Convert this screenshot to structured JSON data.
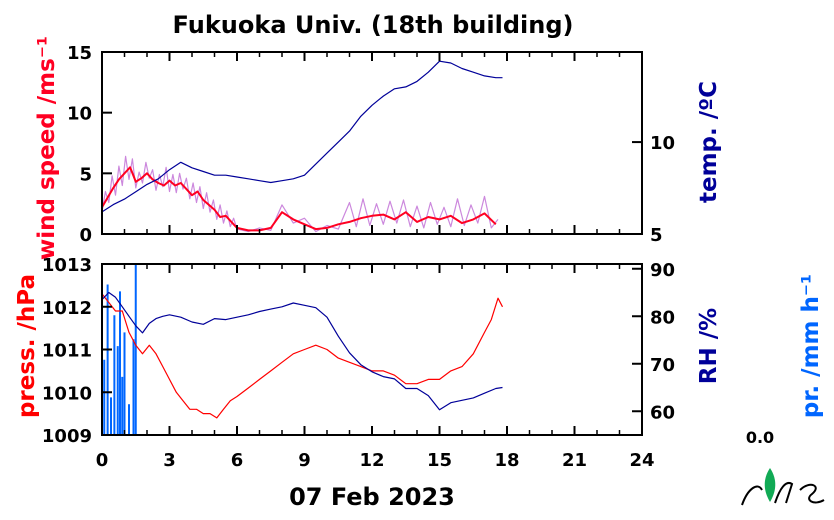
{
  "title": "Fukuoka Univ. (18th building)",
  "date_label": "07 Feb 2023",
  "colors": {
    "wind_mean": "#ff0022",
    "wind_raw": "#cc88dd",
    "temp": "#000099",
    "press": "#ff0000",
    "rh": "#000099",
    "precip": "#0066ff",
    "logo_leaf": "#11aa55"
  },
  "chart_data": [
    {
      "type": "line",
      "panel": "top",
      "xlim": [
        0,
        24
      ],
      "x_ticks": [
        "0",
        "3",
        "6",
        "9",
        "12",
        "15",
        "18",
        "21",
        "24"
      ],
      "left_axis": {
        "label": "wind speed /ms⁻¹",
        "ylim": [
          0,
          15
        ],
        "ticks": [
          "0",
          "5",
          "10",
          "15"
        ]
      },
      "right_axis": {
        "label": "temp. /ºC",
        "ylim": [
          5,
          14.9
        ],
        "ticks": [
          "5",
          "10"
        ]
      },
      "series": [
        {
          "axis": "left",
          "x": [
            0,
            0.25,
            0.5,
            0.75,
            1.0,
            1.25,
            1.5,
            1.75,
            2.0,
            2.25,
            2.5,
            2.75,
            3.0,
            3.25,
            3.5,
            3.75,
            4.0,
            4.25,
            4.5,
            4.75,
            5.0,
            5.25,
            5.5,
            5.75,
            6.0,
            6.5,
            7.0,
            7.5,
            8.0,
            8.5,
            9.0,
            9.5,
            10.0,
            10.5,
            11.0,
            11.5,
            12.0,
            12.5,
            13.0,
            13.5,
            14.0,
            14.5,
            15.0,
            15.5,
            16.0,
            16.5,
            17.0,
            17.5
          ],
          "y": [
            2.2,
            3.0,
            3.8,
            4.5,
            5.0,
            5.5,
            4.3,
            4.6,
            5.0,
            4.5,
            4.2,
            4.0,
            4.4,
            4.0,
            4.2,
            3.7,
            3.2,
            3.5,
            2.8,
            2.4,
            2.0,
            1.4,
            1.5,
            1.0,
            0.5,
            0.3,
            0.3,
            0.5,
            1.8,
            1.2,
            0.8,
            0.4,
            0.5,
            0.8,
            1.0,
            1.3,
            1.5,
            1.6,
            1.2,
            1.8,
            1.0,
            1.4,
            1.2,
            1.5,
            0.9,
            1.2,
            1.7,
            0.8
          ]
        },
        {
          "axis": "left",
          "x": [
            0,
            0.15,
            0.3,
            0.45,
            0.6,
            0.75,
            0.9,
            1.05,
            1.2,
            1.35,
            1.5,
            1.65,
            1.8,
            1.95,
            2.1,
            2.25,
            2.4,
            2.55,
            2.7,
            2.85,
            3.0,
            3.15,
            3.3,
            3.45,
            3.6,
            3.75,
            3.9,
            4.05,
            4.2,
            4.35,
            4.5,
            4.65,
            4.8,
            4.95,
            5.1,
            5.25,
            5.4,
            5.55,
            5.7,
            5.85,
            6.0,
            6.5,
            7.0,
            7.5,
            8.0,
            8.5,
            9.0,
            9.5,
            10.0,
            10.5,
            11.0,
            11.3,
            11.6,
            11.9,
            12.2,
            12.5,
            12.8,
            13.1,
            13.4,
            13.7,
            14.0,
            14.3,
            14.6,
            14.9,
            15.2,
            15.5,
            15.8,
            16.1,
            16.4,
            16.7,
            17.0,
            17.3,
            17.6
          ],
          "y": [
            1.8,
            3.5,
            2.6,
            4.8,
            3.2,
            5.6,
            4.0,
            6.4,
            4.5,
            6.2,
            3.8,
            5.1,
            4.2,
            5.9,
            4.6,
            5.3,
            3.6,
            4.9,
            3.9,
            5.5,
            3.5,
            4.9,
            3.4,
            5.0,
            3.7,
            4.6,
            2.9,
            4.2,
            2.6,
            3.9,
            2.1,
            3.4,
            1.8,
            2.8,
            1.2,
            2.4,
            0.9,
            1.9,
            0.6,
            1.3,
            0.4,
            0.2,
            0.5,
            0.3,
            2.4,
            0.9,
            1.3,
            0.2,
            0.7,
            0.4,
            2.6,
            0.6,
            2.9,
            0.7,
            2.5,
            0.8,
            2.7,
            0.9,
            2.8,
            0.6,
            2.3,
            0.5,
            2.6,
            0.8,
            2.2,
            0.6,
            2.9,
            0.7,
            2.4,
            0.9,
            3.1,
            0.5,
            1.2
          ]
        },
        {
          "axis": "right",
          "x": [
            0,
            0.5,
            1.0,
            1.5,
            2.0,
            2.5,
            3.0,
            3.5,
            4.0,
            4.5,
            5.0,
            5.5,
            6.0,
            6.5,
            7.0,
            7.5,
            8.0,
            8.5,
            9.0,
            9.5,
            10.0,
            10.5,
            11.0,
            11.5,
            12.0,
            12.5,
            13.0,
            13.5,
            14.0,
            14.5,
            15.0,
            15.5,
            16.0,
            16.5,
            17.0,
            17.5,
            17.8
          ],
          "y": [
            6.2,
            6.6,
            6.9,
            7.3,
            7.7,
            8.0,
            8.5,
            8.9,
            8.6,
            8.4,
            8.2,
            8.2,
            8.1,
            8.0,
            7.9,
            7.8,
            7.9,
            8.0,
            8.2,
            8.8,
            9.4,
            10.0,
            10.6,
            11.4,
            12.0,
            12.5,
            12.9,
            13.0,
            13.3,
            13.8,
            14.4,
            14.3,
            14.0,
            13.8,
            13.6,
            13.5,
            13.5
          ]
        }
      ]
    },
    {
      "type": "line",
      "panel": "bottom",
      "xlim": [
        0,
        24
      ],
      "x_ticks": [
        "0",
        "3",
        "6",
        "9",
        "12",
        "15",
        "18",
        "21",
        "24"
      ],
      "xlabel": "07 Feb 2023",
      "left_axis": {
        "label": "press. /hPa",
        "ylim": [
          1009,
          1013
        ],
        "ticks": [
          "1009",
          "1010",
          "1011",
          "1012",
          "1013"
        ]
      },
      "right_axis": {
        "label": "RH /%",
        "ylim": [
          55,
          91
        ],
        "ticks": [
          "60",
          "70",
          "80",
          "90"
        ]
      },
      "precip_axis": {
        "label": "pr. /mm h⁻¹",
        "ticks": [
          "0.0"
        ]
      },
      "series": [
        {
          "axis": "left",
          "x": [
            0,
            0.3,
            0.6,
            0.9,
            1.2,
            1.5,
            1.8,
            2.1,
            2.4,
            2.7,
            3.0,
            3.3,
            3.6,
            3.9,
            4.2,
            4.5,
            4.8,
            5.1,
            5.4,
            5.7,
            6.0,
            6.5,
            7.0,
            7.5,
            8.0,
            8.5,
            9.0,
            9.5,
            10.0,
            10.5,
            11.0,
            11.5,
            12.0,
            12.5,
            13.0,
            13.5,
            14.0,
            14.5,
            15.0,
            15.5,
            16.0,
            16.5,
            17.0,
            17.3,
            17.6,
            17.8
          ],
          "y": [
            1012.3,
            1012.1,
            1011.9,
            1011.9,
            1011.4,
            1011.1,
            1010.9,
            1011.1,
            1010.9,
            1010.6,
            1010.3,
            1010.0,
            1009.8,
            1009.6,
            1009.6,
            1009.5,
            1009.5,
            1009.4,
            1009.6,
            1009.8,
            1009.9,
            1010.1,
            1010.3,
            1010.5,
            1010.7,
            1010.9,
            1011.0,
            1011.1,
            1011.0,
            1010.8,
            1010.7,
            1010.6,
            1010.5,
            1010.5,
            1010.4,
            1010.2,
            1010.2,
            1010.3,
            1010.3,
            1010.5,
            1010.6,
            1010.9,
            1011.4,
            1011.7,
            1012.2,
            1012.0
          ]
        },
        {
          "axis": "right",
          "x": [
            0,
            0.3,
            0.6,
            0.9,
            1.2,
            1.5,
            1.8,
            2.1,
            2.4,
            2.7,
            3.0,
            3.5,
            4.0,
            4.5,
            5.0,
            5.5,
            6.0,
            6.5,
            7.0,
            7.5,
            8.0,
            8.5,
            9.0,
            9.5,
            10.0,
            10.5,
            11.0,
            11.5,
            12.0,
            12.5,
            13.0,
            13.5,
            14.0,
            14.5,
            15.0,
            15.5,
            16.0,
            16.5,
            17.0,
            17.5,
            17.8
          ],
          "y": [
            83.5,
            85,
            84,
            82,
            80,
            78,
            76.5,
            78.5,
            79.5,
            80,
            80.3,
            79.8,
            78.8,
            78.3,
            79.5,
            79.3,
            79.8,
            80.3,
            81,
            81.5,
            82,
            82.8,
            82.3,
            81.8,
            79.8,
            75.8,
            72.3,
            69.8,
            68.3,
            67.3,
            66.8,
            64.8,
            64.8,
            63.3,
            60.3,
            61.8,
            62.3,
            62.8,
            63.8,
            64.8,
            65
          ]
        },
        {
          "type": "bar",
          "axis": "precip",
          "x": [
            0.1,
            0.25,
            0.4,
            0.55,
            0.7,
            0.8,
            0.9,
            1.0,
            1.2,
            1.4,
            1.5
          ],
          "y": [
            0.44,
            0.88,
            0.22,
            0.7,
            0.52,
            0.84,
            0.34,
            0.6,
            0.18,
            0.56,
            1.0
          ]
        }
      ]
    }
  ]
}
